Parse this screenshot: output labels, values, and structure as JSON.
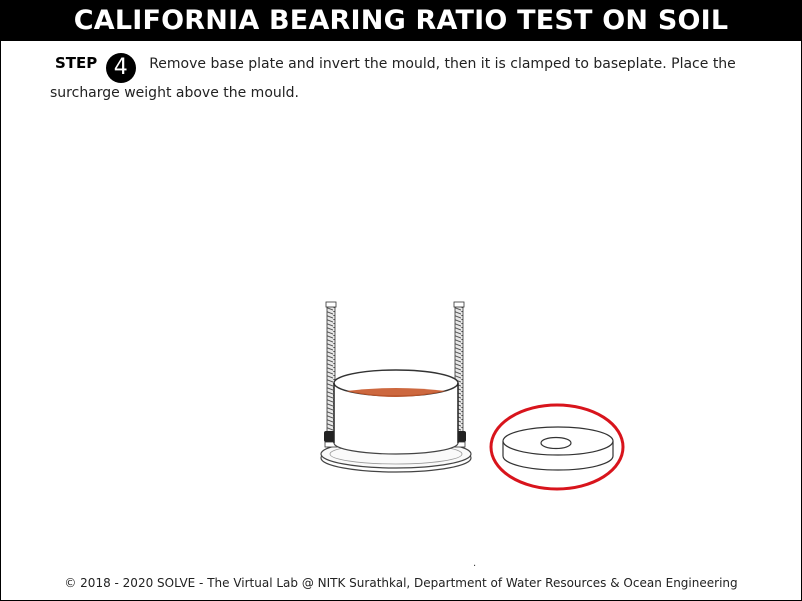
{
  "header": {
    "title": "CALIFORNIA BEARING RATIO TEST ON SOIL"
  },
  "step": {
    "label": "STEP",
    "number": "4",
    "text": "Remove base plate and invert the mould, then it is clamped to baseplate. Place the surcharge weight above the mould."
  },
  "scene": {
    "mould_icon": "cbr-mould-with-rods",
    "weight_icon": "surcharge-weight-disc",
    "highlight_color": "#d8141c",
    "soil_color": "#c8582a"
  },
  "footer": {
    "dot": ".",
    "copyright": "© 2018 - 2020 SOLVE - The Virtual Lab @ NITK Surathkal, Department of Water Resources & Ocean Engineering"
  }
}
